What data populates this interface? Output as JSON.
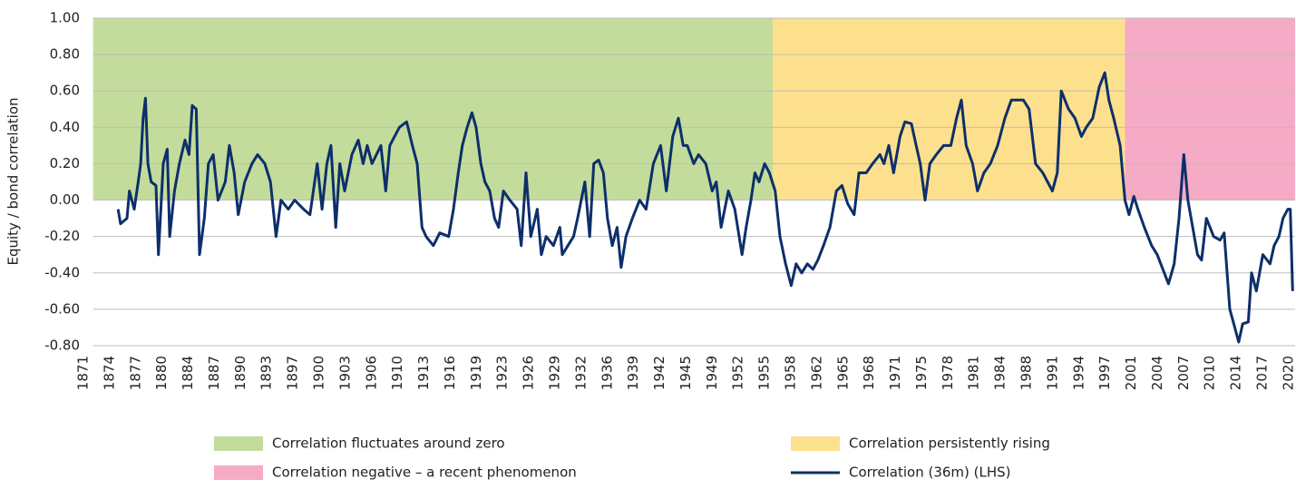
{
  "chart_data": {
    "type": "line",
    "y_label": "Equity / bond correlation",
    "xlim": [
      1871,
      2021.3
    ],
    "ylim": [
      -0.8,
      1.0
    ],
    "yticks": [
      {
        "value": 1.0,
        "label": "1.00"
      },
      {
        "value": 0.8,
        "label": "0.80"
      },
      {
        "value": 0.6,
        "label": "0.60"
      },
      {
        "value": 0.4,
        "label": "0.40"
      },
      {
        "value": 0.2,
        "label": "0.20"
      },
      {
        "value": 0,
        "label": "0.00"
      },
      {
        "value": -0.2,
        "label": "-0.20"
      },
      {
        "value": -0.4,
        "label": "-0.40"
      },
      {
        "value": -0.6,
        "label": "-0.60"
      },
      {
        "value": -0.8,
        "label": "-0.80"
      }
    ],
    "xticks": [
      1871,
      {
        "value": 1874.25,
        "label": "1874"
      },
      {
        "value": 1877.5,
        "label": "1877"
      },
      {
        "value": 1880.75,
        "label": "1880"
      },
      1884,
      {
        "value": 1887.25,
        "label": "1887"
      },
      {
        "value": 1890.5,
        "label": "1890"
      },
      {
        "value": 1893.75,
        "label": "1893"
      },
      1897,
      {
        "value": 1900.25,
        "label": "1900"
      },
      {
        "value": 1903.5,
        "label": "1903"
      },
      {
        "value": 1906.75,
        "label": "1906"
      },
      1910,
      {
        "value": 1913.25,
        "label": "1913"
      },
      {
        "value": 1916.5,
        "label": "1916"
      },
      {
        "value": 1919.75,
        "label": "1919"
      },
      1923,
      {
        "value": 1926.25,
        "label": "1926"
      },
      {
        "value": 1929.5,
        "label": "1929"
      },
      {
        "value": 1932.75,
        "label": "1932"
      },
      1936,
      {
        "value": 1939.25,
        "label": "1939"
      },
      {
        "value": 1942.5,
        "label": "1942"
      },
      {
        "value": 1945.75,
        "label": "1945"
      },
      1949,
      {
        "value": 1952.25,
        "label": "1952"
      },
      {
        "value": 1955.5,
        "label": "1955"
      },
      {
        "value": 1958.75,
        "label": "1958"
      },
      1962,
      {
        "value": 1965.25,
        "label": "1965"
      },
      {
        "value": 1968.5,
        "label": "1968"
      },
      {
        "value": 1971.75,
        "label": "1971"
      },
      1975,
      {
        "value": 1978.25,
        "label": "1978"
      },
      {
        "value": 1981.5,
        "label": "1981"
      },
      {
        "value": 1984.75,
        "label": "1984"
      },
      1988,
      {
        "value": 1991.25,
        "label": "1991"
      },
      {
        "value": 1994.5,
        "label": "1994"
      },
      {
        "value": 1997.75,
        "label": "1997"
      },
      2001,
      {
        "value": 2004.25,
        "label": "2004"
      },
      {
        "value": 2007.5,
        "label": "2007"
      },
      {
        "value": 2010.75,
        "label": "2010"
      },
      2014,
      {
        "value": 2017.25,
        "label": "2017"
      },
      {
        "value": 2020.5,
        "label": "2020"
      }
    ],
    "grid": true,
    "regions": [
      {
        "name": "Correlation fluctuates around zero",
        "color": "#c3dc9b",
        "start": 1872.2,
        "end": 1956.5
      },
      {
        "name": "Correlation persistently rising",
        "color": "#fde08d",
        "start": 1956.5,
        "end": 2000.2
      },
      {
        "name": "Correlation negative – a recent phenomenon",
        "color": "#f5abc5",
        "start": 2000.2,
        "end": 2021.3
      }
    ],
    "series": [
      {
        "name": "Correlation (36m) (LHS)",
        "color": "#0d2f6b",
        "x": [
          1875.3,
          1875.6,
          1876.4,
          1876.7,
          1877.3,
          1877.8,
          1878.1,
          1878.4,
          1878.7,
          1879.0,
          1879.4,
          1880.0,
          1880.3,
          1880.9,
          1881.4,
          1881.7,
          1882.3,
          1882.9,
          1883.6,
          1884.1,
          1884.5,
          1885.0,
          1885.4,
          1886.0,
          1886.5,
          1887.1,
          1887.7,
          1888.6,
          1889.1,
          1889.7,
          1890.2,
          1891.0,
          1891.9,
          1892.6,
          1893.5,
          1894.2,
          1894.9,
          1895.5,
          1896.4,
          1897.2,
          1898.3,
          1899.1,
          1900.0,
          1900.6,
          1901.2,
          1901.7,
          1902.3,
          1902.8,
          1903.4,
          1904.3,
          1905.1,
          1905.7,
          1906.2,
          1906.8,
          1907.9,
          1908.5,
          1909.0,
          1910.2,
          1911.1,
          1911.8,
          1912.4,
          1913.0,
          1913.5,
          1914.4,
          1915.2,
          1916.3,
          1916.9,
          1917.5,
          1918.0,
          1918.6,
          1919.2,
          1919.7,
          1920.3,
          1920.8,
          1921.4,
          1922.0,
          1922.5,
          1923.1,
          1923.9,
          1924.8,
          1925.3,
          1925.9,
          1926.5,
          1927.3,
          1927.8,
          1928.4,
          1929.3,
          1930.1,
          1930.4,
          1931.1,
          1931.8,
          1932.3,
          1933.2,
          1933.8,
          1934.3,
          1934.9,
          1935.5,
          1936.0,
          1936.6,
          1937.2,
          1937.7,
          1938.3,
          1939.1,
          1940.0,
          1940.8,
          1941.7,
          1942.6,
          1943.3,
          1944.1,
          1944.8,
          1945.4,
          1945.9,
          1946.7,
          1947.3,
          1948.2,
          1949.0,
          1949.5,
          1950.1,
          1951.0,
          1951.8,
          1952.7,
          1953.2,
          1953.8,
          1954.3,
          1954.8,
          1955.5,
          1956.1,
          1956.8,
          1957.4,
          1958.1,
          1958.8,
          1959.4,
          1960.1,
          1960.8,
          1961.5,
          1962.1,
          1962.8,
          1963.6,
          1964.4,
          1965.1,
          1965.8,
          1966.6,
          1967.2,
          1968.1,
          1968.9,
          1969.8,
          1970.3,
          1970.9,
          1971.5,
          1972.3,
          1972.9,
          1973.7,
          1974.3,
          1974.8,
          1975.4,
          1976.0,
          1976.8,
          1977.7,
          1978.6,
          1979.3,
          1979.9,
          1980.5,
          1981.3,
          1981.9,
          1982.7,
          1983.5,
          1984.4,
          1985.3,
          1986.1,
          1986.9,
          1987.6,
          1988.3,
          1989.1,
          1990.0,
          1990.6,
          1991.2,
          1991.8,
          1992.3,
          1993.2,
          1994.0,
          1994.8,
          1995.4,
          1996.2,
          1997.0,
          1997.7,
          1998.2,
          1998.8,
          1999.6,
          2000.2,
          2000.7,
          2001.3,
          2001.8,
          2002.6,
          2003.5,
          2004.2,
          2004.9,
          2005.6,
          2006.3,
          2006.9,
          2007.5,
          2008.0,
          2008.6,
          2009.2,
          2009.7,
          2010.3,
          2011.2,
          2012.0,
          2012.5,
          2013.2,
          2013.7,
          2014.3,
          2014.8,
          2015.5,
          2015.9,
          2016.5,
          2017.3,
          2018.2,
          2018.7,
          2019.3,
          2019.8,
          2020.4,
          2020.7,
          2021.0
        ],
        "values": [
          -0.05,
          -0.13,
          -0.1,
          0.05,
          -0.05,
          0.1,
          0.2,
          0.45,
          0.56,
          0.2,
          0.1,
          0.08,
          -0.3,
          0.2,
          0.28,
          -0.2,
          0.05,
          0.2,
          0.33,
          0.25,
          0.52,
          0.5,
          -0.3,
          -0.1,
          0.2,
          0.25,
          0.0,
          0.1,
          0.3,
          0.15,
          -0.08,
          0.1,
          0.2,
          0.25,
          0.2,
          0.1,
          -0.2,
          0.0,
          -0.05,
          0.0,
          -0.05,
          -0.08,
          0.2,
          -0.05,
          0.2,
          0.3,
          -0.15,
          0.2,
          0.05,
          0.25,
          0.33,
          0.2,
          0.3,
          0.2,
          0.3,
          0.05,
          0.3,
          0.4,
          0.43,
          0.3,
          0.2,
          -0.15,
          -0.2,
          -0.25,
          -0.18,
          -0.2,
          -0.05,
          0.15,
          0.3,
          0.4,
          0.48,
          0.4,
          0.2,
          0.1,
          0.05,
          -0.1,
          -0.15,
          0.05,
          0.0,
          -0.05,
          -0.25,
          0.15,
          -0.2,
          -0.05,
          -0.3,
          -0.2,
          -0.25,
          -0.15,
          -0.3,
          -0.25,
          -0.2,
          -0.1,
          0.1,
          -0.2,
          0.2,
          0.22,
          0.15,
          -0.1,
          -0.25,
          -0.15,
          -0.37,
          -0.2,
          -0.1,
          0.0,
          -0.05,
          0.2,
          0.3,
          0.05,
          0.35,
          0.45,
          0.3,
          0.3,
          0.2,
          0.25,
          0.2,
          0.05,
          0.1,
          -0.15,
          0.05,
          -0.05,
          -0.3,
          -0.15,
          0.0,
          0.15,
          0.1,
          0.2,
          0.15,
          0.05,
          -0.2,
          -0.35,
          -0.47,
          -0.35,
          -0.4,
          -0.35,
          -0.38,
          -0.33,
          -0.25,
          -0.15,
          0.05,
          0.08,
          -0.02,
          -0.08,
          0.15,
          0.15,
          0.2,
          0.25,
          0.2,
          0.3,
          0.15,
          0.35,
          0.43,
          0.42,
          0.3,
          0.2,
          0.0,
          0.2,
          0.25,
          0.3,
          0.3,
          0.45,
          0.55,
          0.3,
          0.2,
          0.05,
          0.15,
          0.2,
          0.3,
          0.45,
          0.55,
          0.55,
          0.55,
          0.5,
          0.2,
          0.15,
          0.1,
          0.05,
          0.15,
          0.6,
          0.5,
          0.45,
          0.35,
          0.4,
          0.45,
          0.62,
          0.7,
          0.55,
          0.45,
          0.3,
          0.0,
          -0.08,
          0.02,
          -0.05,
          -0.15,
          -0.25,
          -0.3,
          -0.38,
          -0.46,
          -0.35,
          -0.1,
          0.25,
          0.0,
          -0.15,
          -0.3,
          -0.33,
          -0.1,
          -0.2,
          -0.22,
          -0.18,
          -0.6,
          -0.68,
          -0.78,
          -0.68,
          -0.67,
          -0.4,
          -0.5,
          -0.3,
          -0.35,
          -0.25,
          -0.2,
          -0.1,
          -0.05,
          -0.05,
          -0.5
        ]
      }
    ]
  }
}
